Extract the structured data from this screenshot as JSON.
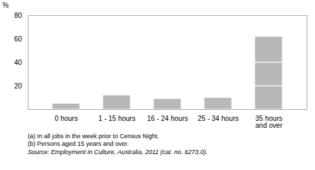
{
  "chart_data": {
    "type": "bar",
    "stacked": true,
    "categories": [
      "0 hours",
      "1 - 15 hours",
      "16 - 24 hours",
      "25 - 34 hours",
      "35 hours\nand over"
    ],
    "series": [
      {
        "values": [
          5,
          12,
          9,
          10,
          20
        ]
      },
      {
        "values": [
          0,
          0,
          0,
          0,
          20
        ]
      },
      {
        "values": [
          0,
          0,
          0,
          0,
          22
        ]
      }
    ],
    "color": "#b8b8b8",
    "ylabel": "%",
    "ylim": [
      0,
      80
    ],
    "yticks": [
      20,
      40,
      60,
      80
    ],
    "footnotes": [
      "(a)  In all jobs in the week prior to Census Night.",
      "(b)  Persons aged  15 years and over."
    ],
    "source": "Source:  Employment in Culture, Australia, 2011 (cat.  no.  6273.0)."
  }
}
